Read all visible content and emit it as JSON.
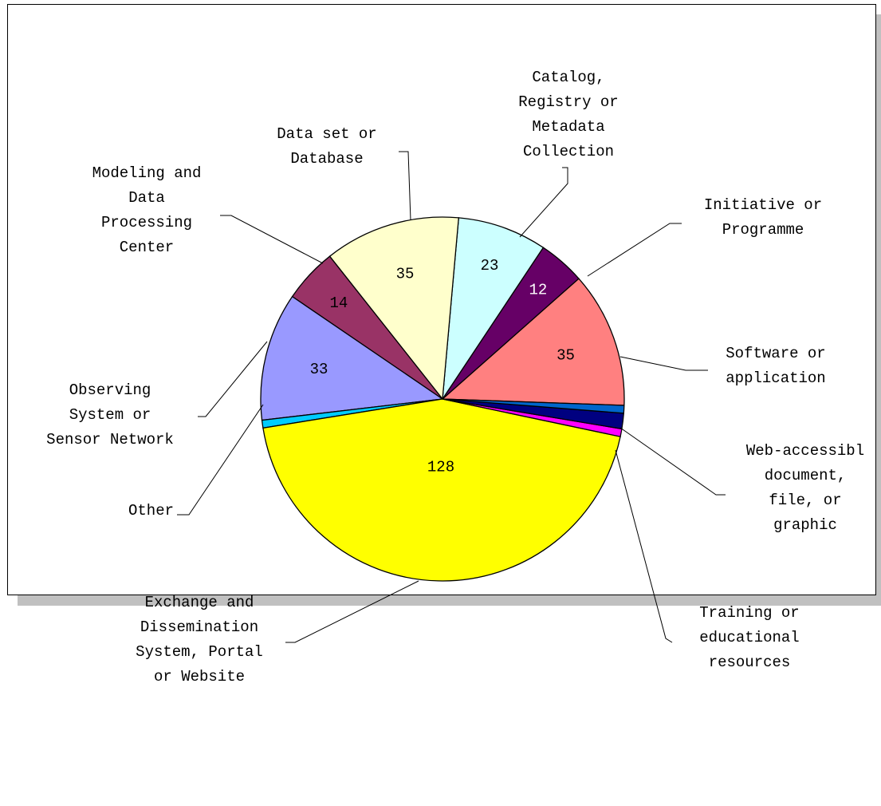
{
  "chart_data": {
    "type": "pie",
    "title": "",
    "legend": "none",
    "slices": [
      {
        "label": "Software or application",
        "label_lines": [
          "Software or",
          "application"
        ],
        "value": 35,
        "color": "#ff8080",
        "value_color": "#000000"
      },
      {
        "label": "Initiative or Programme",
        "label_lines": [
          "Initiative or",
          "Programme"
        ],
        "value": 12,
        "color": "#660066",
        "value_color": "#ffffff"
      },
      {
        "label": "Catalog, Registry or Metadata Collection",
        "label_lines": [
          "Catalog,",
          "Registry or",
          "Metadata",
          "Collection"
        ],
        "value": 23,
        "color": "#ccffff",
        "value_color": "#000000"
      },
      {
        "label": "Data set or Database",
        "label_lines": [
          "Data set or",
          "Database"
        ],
        "value": 35,
        "color": "#ffffcc",
        "value_color": "#000000"
      },
      {
        "label": "Modeling and Data Processing Center",
        "label_lines": [
          "Modeling and",
          "Data",
          "Processing",
          "Center"
        ],
        "value": 14,
        "color": "#993366",
        "value_color": "#000000"
      },
      {
        "label": "Observing System or Sensor Network",
        "label_lines": [
          "Observing",
          "System or",
          "Sensor Network"
        ],
        "value": 33,
        "color": "#9999ff",
        "value_color": "#000000"
      },
      {
        "label": "Other",
        "label_lines": [
          "Other"
        ],
        "value": 2,
        "color": "#00ccff",
        "value_color": "#000000"
      },
      {
        "label": "Exchange and Dissemination System, Portal or Website",
        "label_lines": [
          "Exchange and",
          "Dissemination",
          "System, Portal",
          "or Website"
        ],
        "value": 128,
        "color": "#ffff00",
        "value_color": "#000000"
      },
      {
        "label": "Training or educational resources",
        "label_lines": [
          "Training or",
          "educational",
          "resources"
        ],
        "value": 2,
        "color": "#ff00ff",
        "value_color": "#000000"
      },
      {
        "label": "Training or educational resources (2)",
        "label_lines": [],
        "value": 4,
        "color": "#000080",
        "value_color": "#000000"
      },
      {
        "label": "Web-accessible document, file, or graphic",
        "label_lines": [
          "Web-accessibl",
          "document,",
          "file, or",
          "graphic"
        ],
        "value": 2,
        "color": "#0066cc",
        "value_color": "#000000"
      }
    ],
    "shown_value_labels": [
      35,
      12,
      23,
      35,
      14,
      33,
      128
    ]
  }
}
